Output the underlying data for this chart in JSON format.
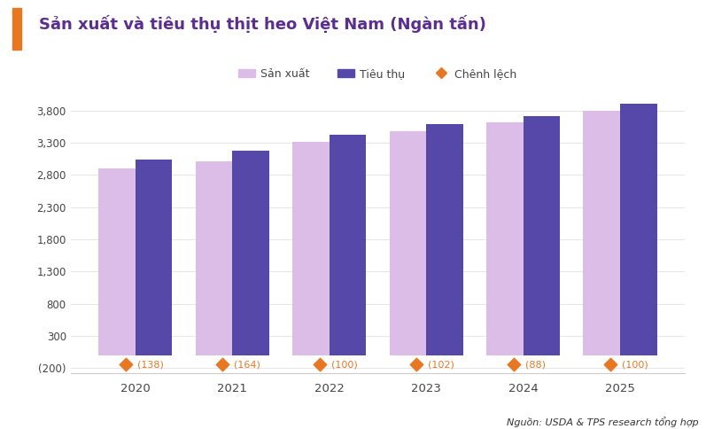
{
  "title": "Sản xuất và tiêu thụ thịt heo Việt Nam (Ngàn tấn)",
  "title_color": "#5b2d8e",
  "title_accent_color": "#e87722",
  "years": [
    2020,
    2021,
    2022,
    2023,
    2024,
    2025
  ],
  "san_xuat": [
    2900,
    3010,
    3320,
    3480,
    3620,
    3800
  ],
  "tieu_thu": [
    3038,
    3174,
    3420,
    3582,
    3708,
    3900
  ],
  "chenh_lech_labels": [
    "(138)",
    "(164)",
    "(100)",
    "(102)",
    "(88)",
    "(100)"
  ],
  "san_xuat_color": "#dbbde8",
  "tieu_thu_color": "#5648a8",
  "chenh_lech_color": "#e87722",
  "background_color": "#ffffff",
  "yticks": [
    -200,
    300,
    800,
    1300,
    1800,
    2300,
    2800,
    3300,
    3800
  ],
  "ytick_labels": [
    "(200)",
    "300",
    "800",
    "1,300",
    "1,800",
    "2,300",
    "2,800",
    "3,300",
    "3,800"
  ],
  "ylim": [
    -280,
    4050
  ],
  "legend_san_xuat": "Sản xuất",
  "legend_tieu_thu": "Tiêu thụ",
  "legend_chenh_lech": "Chênh lệch",
  "source_text": "Nguồn: USDA & TPS research tổng hợp",
  "bar_width": 0.38
}
